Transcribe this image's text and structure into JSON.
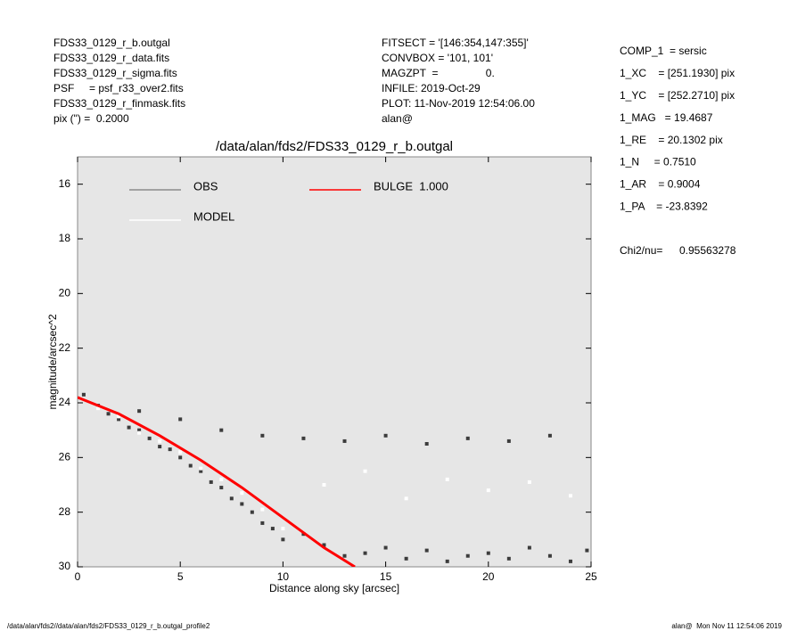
{
  "header": {
    "left": [
      "FDS33_0129_r_b.outgal",
      "FDS33_0129_r_data.fits",
      "FDS33_0129_r_sigma.fits",
      "PSF     = psf_r33_over2.fits",
      "FDS33_0129_r_finmask.fits",
      "pix (\") =  0.2000"
    ],
    "middle": [
      "FITSECT = '[146:354,147:355]'",
      "CONVBOX = '101, 101'",
      "MAGZPT  =                0.",
      "INFILE: 2019-Oct-29",
      "PLOT: 11-Nov-2019 12:54:06.00",
      "alan@"
    ],
    "right": [
      "COMP_1  = sersic",
      "1_XC    = [251.1930] pix",
      "1_YC    = [252.2710] pix",
      "1_MAG   = 19.4687",
      "1_RE    = 20.1302 pix",
      "1_N     = 0.7510",
      "1_AR    = 0.9004",
      "1_PA    = -23.8392"
    ],
    "chi2_label": "Chi2/nu=",
    "chi2_value": "0.95563278"
  },
  "footer": {
    "left": "/data/alan/fds2//data/alan/fds2/FDS33_0129_r_b.outgal_profile2",
    "right": "alan@  Mon Nov 11 12:54:06 2019"
  },
  "chart_data": {
    "type": "scatter",
    "title": "/data/alan/fds2/FDS33_0129_r_b.outgal",
    "x_label": "Distance along sky [arcsec]",
    "y_label": "magnitude/arcsec^2",
    "xlim": [
      0,
      25
    ],
    "ylim": [
      30,
      15
    ],
    "xticks": [
      0,
      5,
      10,
      15,
      20,
      25
    ],
    "yticks": [
      16,
      18,
      20,
      22,
      24,
      26,
      28,
      30
    ],
    "series": [
      {
        "name": "OBS",
        "color": "#8c8c8c",
        "marker_color": "#3c3c3c",
        "x": [
          0.3,
          1,
          1.5,
          2,
          2.5,
          3,
          3.5,
          4,
          4.5,
          5,
          5.5,
          6,
          6.5,
          7,
          7.5,
          8,
          8.5,
          9,
          9.5,
          10,
          11,
          12,
          13,
          14,
          15,
          16,
          17,
          18,
          19,
          20,
          21,
          22,
          23,
          24,
          24.8,
          3,
          5,
          7,
          9,
          11,
          13,
          15,
          17,
          19,
          21,
          23
        ],
        "values": [
          23.7,
          24.1,
          24.4,
          24.6,
          24.9,
          25.0,
          25.3,
          25.6,
          25.7,
          26.0,
          26.3,
          26.5,
          26.9,
          27.1,
          27.5,
          27.7,
          28.0,
          28.4,
          28.6,
          29.0,
          28.8,
          29.2,
          29.6,
          29.5,
          29.3,
          29.7,
          29.4,
          29.8,
          29.6,
          29.5,
          29.7,
          29.3,
          29.6,
          29.8,
          29.4,
          24.3,
          24.6,
          25.0,
          25.2,
          25.3,
          25.4,
          25.2,
          25.5,
          25.3,
          25.4,
          25.2
        ]
      },
      {
        "name": "MODEL",
        "color": "#ffffff",
        "marker_color": "#ffffff",
        "x": [
          1,
          2,
          3,
          4,
          5,
          6,
          7,
          8,
          9,
          10,
          12,
          14,
          16,
          18,
          20,
          22,
          24
        ],
        "values": [
          24.2,
          24.5,
          25.1,
          25.4,
          25.8,
          26.4,
          26.8,
          27.3,
          27.9,
          28.6,
          27.0,
          26.5,
          27.5,
          26.8,
          27.2,
          26.9,
          27.4
        ]
      },
      {
        "name": "BULGE  1.000",
        "color": "#ff0000",
        "type": "line",
        "x": [
          0,
          2,
          4,
          6,
          8,
          10,
          12,
          13.5
        ],
        "values": [
          23.8,
          24.4,
          25.2,
          26.1,
          27.1,
          28.2,
          29.3,
          30
        ]
      }
    ]
  }
}
